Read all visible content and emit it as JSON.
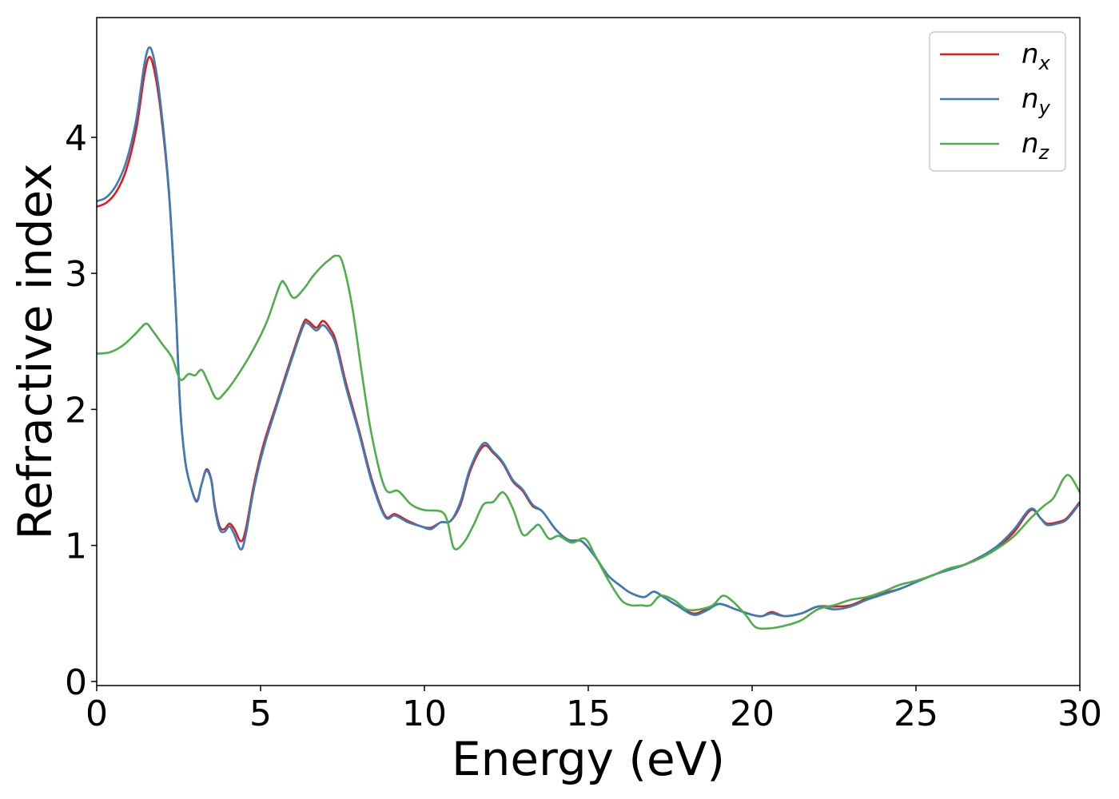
{
  "chart_data": {
    "type": "line",
    "xlabel": "Energy (eV)",
    "ylabel": "Refractive index",
    "xlim": [
      0,
      30
    ],
    "ylim": [
      -0.03,
      4.88
    ],
    "xticks": [
      0,
      5,
      10,
      15,
      20,
      25,
      30
    ],
    "yticks": [
      0,
      1,
      2,
      3,
      4
    ],
    "grid": false,
    "legend_position": "top-right",
    "series": [
      {
        "name": "n",
        "subscript": "x",
        "color": "#e41a1c",
        "points": [
          [
            0,
            3.49
          ],
          [
            0.3,
            3.52
          ],
          [
            0.6,
            3.6
          ],
          [
            0.9,
            3.76
          ],
          [
            1.2,
            4.05
          ],
          [
            1.45,
            4.45
          ],
          [
            1.6,
            4.59
          ],
          [
            1.75,
            4.5
          ],
          [
            1.95,
            4.2
          ],
          [
            2.2,
            3.6
          ],
          [
            2.4,
            2.8
          ],
          [
            2.55,
            2.0
          ],
          [
            2.7,
            1.62
          ],
          [
            2.85,
            1.45
          ],
          [
            3.05,
            1.33
          ],
          [
            3.2,
            1.45
          ],
          [
            3.35,
            1.56
          ],
          [
            3.5,
            1.48
          ],
          [
            3.6,
            1.3
          ],
          [
            3.75,
            1.14
          ],
          [
            3.9,
            1.12
          ],
          [
            4.05,
            1.16
          ],
          [
            4.2,
            1.12
          ],
          [
            4.4,
            1.03
          ],
          [
            4.55,
            1.12
          ],
          [
            4.8,
            1.45
          ],
          [
            5.1,
            1.75
          ],
          [
            5.5,
            2.05
          ],
          [
            5.9,
            2.35
          ],
          [
            6.3,
            2.63
          ],
          [
            6.45,
            2.65
          ],
          [
            6.7,
            2.6
          ],
          [
            6.9,
            2.65
          ],
          [
            7.1,
            2.6
          ],
          [
            7.3,
            2.5
          ],
          [
            7.6,
            2.2
          ],
          [
            8.0,
            1.85
          ],
          [
            8.4,
            1.48
          ],
          [
            8.8,
            1.22
          ],
          [
            9.1,
            1.23
          ],
          [
            9.5,
            1.18
          ],
          [
            9.9,
            1.14
          ],
          [
            10.2,
            1.13
          ],
          [
            10.5,
            1.17
          ],
          [
            10.8,
            1.18
          ],
          [
            11.1,
            1.3
          ],
          [
            11.4,
            1.55
          ],
          [
            11.8,
            1.73
          ],
          [
            12.1,
            1.68
          ],
          [
            12.4,
            1.6
          ],
          [
            12.7,
            1.47
          ],
          [
            13.0,
            1.4
          ],
          [
            13.3,
            1.29
          ],
          [
            13.6,
            1.25
          ],
          [
            14.0,
            1.12
          ],
          [
            14.4,
            1.04
          ],
          [
            14.8,
            1.03
          ],
          [
            15.2,
            0.92
          ],
          [
            15.6,
            0.78
          ],
          [
            16.0,
            0.7
          ],
          [
            16.3,
            0.65
          ],
          [
            16.7,
            0.62
          ],
          [
            17.0,
            0.66
          ],
          [
            17.3,
            0.62
          ],
          [
            17.7,
            0.56
          ],
          [
            18.2,
            0.5
          ],
          [
            18.6,
            0.53
          ],
          [
            19.0,
            0.57
          ],
          [
            19.5,
            0.53
          ],
          [
            20.0,
            0.49
          ],
          [
            20.3,
            0.48
          ],
          [
            20.6,
            0.51
          ],
          [
            21.0,
            0.48
          ],
          [
            21.5,
            0.5
          ],
          [
            22.0,
            0.55
          ],
          [
            22.5,
            0.55
          ],
          [
            23.0,
            0.56
          ],
          [
            23.5,
            0.61
          ],
          [
            24.0,
            0.65
          ],
          [
            24.5,
            0.68
          ],
          [
            25.0,
            0.73
          ],
          [
            25.5,
            0.78
          ],
          [
            26.0,
            0.82
          ],
          [
            26.5,
            0.86
          ],
          [
            27.0,
            0.92
          ],
          [
            27.5,
            0.99
          ],
          [
            28.0,
            1.1
          ],
          [
            28.5,
            1.26
          ],
          [
            28.8,
            1.2
          ],
          [
            29.0,
            1.16
          ],
          [
            29.3,
            1.17
          ],
          [
            29.6,
            1.2
          ],
          [
            30.0,
            1.32
          ]
        ]
      },
      {
        "name": "n",
        "subscript": "y",
        "color": "#377eb8",
        "points": [
          [
            0,
            3.53
          ],
          [
            0.3,
            3.56
          ],
          [
            0.6,
            3.65
          ],
          [
            0.9,
            3.82
          ],
          [
            1.2,
            4.12
          ],
          [
            1.45,
            4.53
          ],
          [
            1.6,
            4.66
          ],
          [
            1.75,
            4.57
          ],
          [
            1.95,
            4.25
          ],
          [
            2.2,
            3.62
          ],
          [
            2.4,
            2.8
          ],
          [
            2.55,
            2.0
          ],
          [
            2.7,
            1.62
          ],
          [
            2.85,
            1.45
          ],
          [
            3.05,
            1.32
          ],
          [
            3.2,
            1.45
          ],
          [
            3.35,
            1.55
          ],
          [
            3.5,
            1.47
          ],
          [
            3.6,
            1.28
          ],
          [
            3.75,
            1.12
          ],
          [
            3.9,
            1.1
          ],
          [
            4.05,
            1.14
          ],
          [
            4.2,
            1.08
          ],
          [
            4.4,
            0.97
          ],
          [
            4.55,
            1.08
          ],
          [
            4.8,
            1.42
          ],
          [
            5.1,
            1.72
          ],
          [
            5.5,
            2.03
          ],
          [
            5.9,
            2.33
          ],
          [
            6.3,
            2.61
          ],
          [
            6.45,
            2.63
          ],
          [
            6.7,
            2.58
          ],
          [
            6.9,
            2.62
          ],
          [
            7.1,
            2.57
          ],
          [
            7.3,
            2.47
          ],
          [
            7.6,
            2.17
          ],
          [
            8.0,
            1.83
          ],
          [
            8.4,
            1.46
          ],
          [
            8.8,
            1.21
          ],
          [
            9.1,
            1.22
          ],
          [
            9.5,
            1.17
          ],
          [
            9.9,
            1.14
          ],
          [
            10.2,
            1.12
          ],
          [
            10.5,
            1.17
          ],
          [
            10.8,
            1.18
          ],
          [
            11.1,
            1.32
          ],
          [
            11.4,
            1.57
          ],
          [
            11.8,
            1.75
          ],
          [
            12.1,
            1.69
          ],
          [
            12.4,
            1.61
          ],
          [
            12.7,
            1.48
          ],
          [
            13.0,
            1.41
          ],
          [
            13.3,
            1.3
          ],
          [
            13.6,
            1.25
          ],
          [
            14.0,
            1.12
          ],
          [
            14.4,
            1.04
          ],
          [
            14.8,
            1.03
          ],
          [
            15.2,
            0.92
          ],
          [
            15.6,
            0.78
          ],
          [
            16.0,
            0.7
          ],
          [
            16.3,
            0.65
          ],
          [
            16.7,
            0.62
          ],
          [
            17.0,
            0.66
          ],
          [
            17.3,
            0.62
          ],
          [
            17.7,
            0.56
          ],
          [
            18.2,
            0.49
          ],
          [
            18.6,
            0.52
          ],
          [
            19.0,
            0.57
          ],
          [
            19.5,
            0.53
          ],
          [
            20.0,
            0.49
          ],
          [
            20.3,
            0.48
          ],
          [
            20.6,
            0.5
          ],
          [
            21.0,
            0.48
          ],
          [
            21.5,
            0.5
          ],
          [
            22.0,
            0.55
          ],
          [
            22.5,
            0.53
          ],
          [
            23.0,
            0.55
          ],
          [
            23.5,
            0.6
          ],
          [
            24.0,
            0.64
          ],
          [
            24.5,
            0.68
          ],
          [
            25.0,
            0.73
          ],
          [
            25.5,
            0.78
          ],
          [
            26.0,
            0.82
          ],
          [
            26.5,
            0.86
          ],
          [
            27.0,
            0.92
          ],
          [
            27.5,
            1.0
          ],
          [
            28.0,
            1.12
          ],
          [
            28.5,
            1.27
          ],
          [
            28.8,
            1.2
          ],
          [
            29.0,
            1.15
          ],
          [
            29.3,
            1.16
          ],
          [
            29.6,
            1.19
          ],
          [
            30.0,
            1.31
          ]
        ]
      },
      {
        "name": "n",
        "subscript": "z",
        "color": "#4daf4a",
        "points": [
          [
            0,
            2.41
          ],
          [
            0.4,
            2.42
          ],
          [
            0.8,
            2.47
          ],
          [
            1.2,
            2.56
          ],
          [
            1.5,
            2.63
          ],
          [
            1.7,
            2.58
          ],
          [
            2.0,
            2.48
          ],
          [
            2.3,
            2.38
          ],
          [
            2.55,
            2.22
          ],
          [
            2.8,
            2.26
          ],
          [
            3.0,
            2.25
          ],
          [
            3.2,
            2.29
          ],
          [
            3.4,
            2.2
          ],
          [
            3.65,
            2.08
          ],
          [
            3.9,
            2.12
          ],
          [
            4.3,
            2.25
          ],
          [
            4.8,
            2.45
          ],
          [
            5.2,
            2.65
          ],
          [
            5.6,
            2.92
          ],
          [
            5.75,
            2.92
          ],
          [
            6.0,
            2.82
          ],
          [
            6.3,
            2.88
          ],
          [
            6.6,
            2.98
          ],
          [
            6.9,
            3.06
          ],
          [
            7.1,
            3.1
          ],
          [
            7.3,
            3.13
          ],
          [
            7.5,
            3.08
          ],
          [
            7.8,
            2.75
          ],
          [
            8.1,
            2.25
          ],
          [
            8.4,
            1.8
          ],
          [
            8.8,
            1.42
          ],
          [
            9.2,
            1.4
          ],
          [
            9.6,
            1.3
          ],
          [
            10.0,
            1.26
          ],
          [
            10.5,
            1.25
          ],
          [
            10.7,
            1.18
          ],
          [
            10.9,
            0.98
          ],
          [
            11.2,
            1.02
          ],
          [
            11.5,
            1.15
          ],
          [
            11.8,
            1.3
          ],
          [
            12.1,
            1.32
          ],
          [
            12.4,
            1.39
          ],
          [
            12.7,
            1.27
          ],
          [
            13.0,
            1.08
          ],
          [
            13.3,
            1.12
          ],
          [
            13.5,
            1.15
          ],
          [
            13.8,
            1.05
          ],
          [
            14.1,
            1.07
          ],
          [
            14.5,
            1.02
          ],
          [
            14.9,
            1.05
          ],
          [
            15.2,
            0.93
          ],
          [
            15.6,
            0.75
          ],
          [
            16.0,
            0.6
          ],
          [
            16.3,
            0.56
          ],
          [
            16.6,
            0.56
          ],
          [
            16.9,
            0.56
          ],
          [
            17.2,
            0.63
          ],
          [
            17.6,
            0.6
          ],
          [
            18.0,
            0.53
          ],
          [
            18.4,
            0.53
          ],
          [
            18.8,
            0.56
          ],
          [
            19.1,
            0.63
          ],
          [
            19.4,
            0.59
          ],
          [
            19.8,
            0.49
          ],
          [
            20.1,
            0.4
          ],
          [
            20.5,
            0.39
          ],
          [
            21.0,
            0.41
          ],
          [
            21.5,
            0.45
          ],
          [
            22.0,
            0.53
          ],
          [
            22.5,
            0.56
          ],
          [
            23.0,
            0.6
          ],
          [
            23.5,
            0.62
          ],
          [
            24.0,
            0.66
          ],
          [
            24.5,
            0.71
          ],
          [
            25.0,
            0.74
          ],
          [
            25.5,
            0.78
          ],
          [
            26.0,
            0.83
          ],
          [
            26.5,
            0.86
          ],
          [
            27.0,
            0.91
          ],
          [
            27.5,
            0.98
          ],
          [
            28.0,
            1.07
          ],
          [
            28.5,
            1.2
          ],
          [
            28.9,
            1.29
          ],
          [
            29.2,
            1.35
          ],
          [
            29.5,
            1.49
          ],
          [
            29.7,
            1.51
          ],
          [
            30.0,
            1.39
          ]
        ]
      }
    ]
  }
}
